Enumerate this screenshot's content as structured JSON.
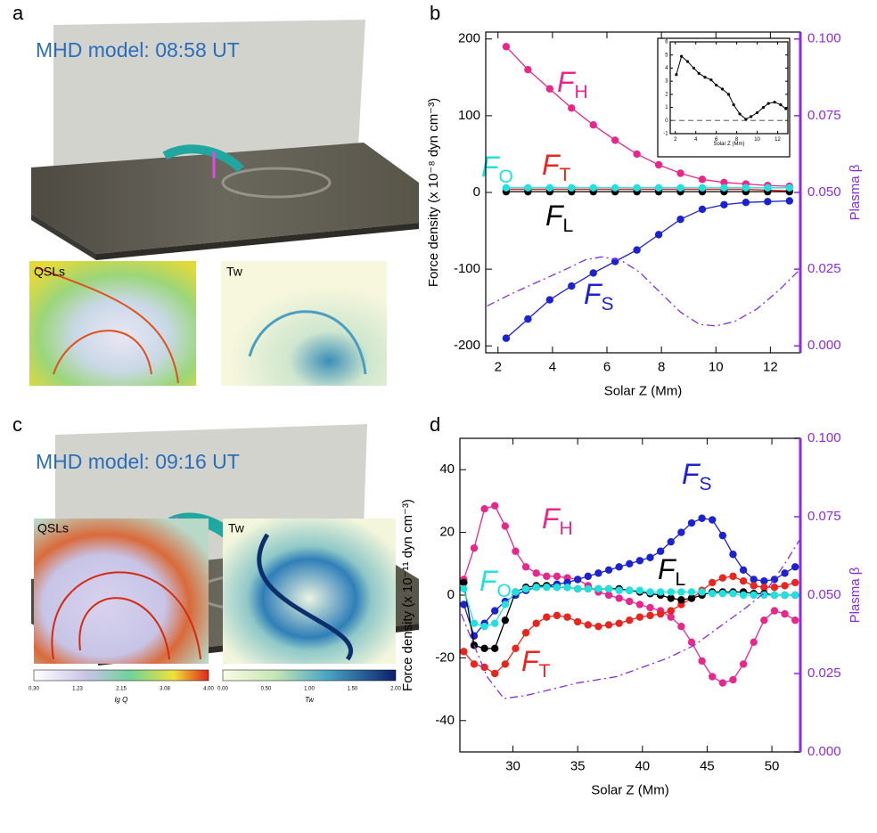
{
  "panels": [
    {
      "label": "a",
      "title": "MHD model: 08:58 UT",
      "qsl": "QSLs",
      "tw": "Tw"
    },
    {
      "label": "c",
      "title": "MHD model: 09:16 UT",
      "qsl": "QSLs",
      "tw": "Tw"
    }
  ],
  "colorbars": [
    {
      "ticks": [
        "0.30",
        "1.23",
        "2.15",
        "3.08",
        "4.00"
      ],
      "label": "lg Q"
    },
    {
      "ticks": [
        "0.00",
        "0.50",
        "1.00",
        "1.50",
        "2.00"
      ],
      "label": "Tw"
    }
  ],
  "chart_data": [
    {
      "type": "line",
      "panel_label": "b",
      "xlabel": "Solar Z (Mm)",
      "ylabel": "Force density (x 10⁻⁸ dyn cm⁻³)",
      "y2label": "Plasma β",
      "xlim": [
        1.55,
        13.1
      ],
      "ylim": [
        -209,
        209
      ],
      "y2lim": [
        -0.00225,
        0.10225
      ],
      "xticks": [
        2,
        4,
        6,
        8,
        10,
        12
      ],
      "yticks": [
        -200,
        -100,
        0,
        100,
        200
      ],
      "y2ticks": [
        {
          "value": 0,
          "label": "0.000"
        },
        0.025,
        {
          "value": 0.05,
          "label": "0.050"
        },
        0.075,
        {
          "value": 0.1,
          "label": "0.100"
        }
      ],
      "x": [
        2.3,
        3.1,
        3.9,
        4.7,
        5.5,
        6.3,
        7.1,
        7.9,
        8.7,
        9.5,
        10.3,
        11.1,
        11.9,
        12.7
      ],
      "series": [
        {
          "name": "FH",
          "color": "#e8278c",
          "marker": "o",
          "values": [
            190,
            160,
            135,
            110,
            88,
            68,
            50,
            36,
            25,
            17,
            13,
            11,
            9,
            8
          ]
        },
        {
          "name": "FS",
          "color": "#1c22d0",
          "marker": "o",
          "values": [
            -190,
            -165,
            -140,
            -122,
            -105,
            -90,
            -75,
            -55,
            -35,
            -22,
            -16,
            -13,
            -12,
            -11
          ]
        },
        {
          "name": "FT",
          "color": "#e8251e",
          "marker": "o",
          "values": [
            4,
            4,
            4,
            4,
            4,
            4,
            4,
            4,
            4,
            4,
            4,
            4,
            3,
            2
          ]
        },
        {
          "name": "FL",
          "color": "#000000",
          "marker": "o",
          "values": [
            1,
            1,
            1,
            1,
            1,
            1,
            1,
            1,
            1,
            1,
            1,
            1,
            1,
            1
          ]
        },
        {
          "name": "FO",
          "color": "#22e0e0",
          "marker": "o",
          "values": [
            6,
            6,
            6,
            6,
            6,
            6,
            6,
            6,
            6,
            6,
            6,
            6,
            6,
            6
          ]
        },
        {
          "axis": "y2",
          "color": "#8a2be2",
          "linestyle": "dashdot",
          "x": [
            1.6,
            2.5,
            3.5,
            4.5,
            5.2,
            5.8,
            6.5,
            7.2,
            8,
            8.7,
            9.4,
            10,
            10.7,
            11.5,
            12.3,
            13.1
          ],
          "values": [
            0.013,
            0.017,
            0.021,
            0.025,
            0.028,
            0.029,
            0.028,
            0.024,
            0.017,
            0.011,
            0.007,
            0.0065,
            0.008,
            0.012,
            0.018,
            0.025
          ]
        }
      ]
    },
    {
      "type": "line",
      "xlabel": "Solar Z (Mm)",
      "xlim": [
        1.5,
        13
      ],
      "ylim": [
        -1,
        6
      ],
      "xticks": [
        2,
        4,
        6,
        8,
        10,
        12
      ],
      "yticks": [
        -1,
        0,
        1,
        2,
        3,
        4,
        5,
        6
      ],
      "hline": 0,
      "x": [
        2.1,
        2.6,
        3.2,
        3.8,
        4.3,
        4.9,
        5.5,
        6.0,
        6.6,
        7.2,
        7.7,
        8.3,
        8.9,
        9.4,
        10.0,
        10.6,
        11.1,
        11.7,
        12.3,
        12.8
      ],
      "series": [
        {
          "color": "#000000",
          "marker": "o",
          "values": [
            3.5,
            4.9,
            4.5,
            4.0,
            3.6,
            3.3,
            3.1,
            2.7,
            2.4,
            2.0,
            1.2,
            0.5,
            0.1,
            0.3,
            0.6,
            1.0,
            1.3,
            1.4,
            1.2,
            0.9
          ]
        }
      ]
    },
    {
      "type": "line",
      "panel_label": "d",
      "xlabel": "Solar Z (Mm)",
      "ylabel": "Force density (x 10⁻¹¹ dyn cm⁻³)",
      "y2label": "Plasma β",
      "xlim": [
        25.9,
        52.2
      ],
      "ylim": [
        -50,
        50
      ],
      "y2lim": [
        0,
        0.1
      ],
      "xticks": [
        30,
        35,
        40,
        45,
        50
      ],
      "yticks": [
        -40,
        -20,
        0,
        20,
        40
      ],
      "y2ticks": [
        {
          "value": 0,
          "label": "0.000"
        },
        0.025,
        {
          "value": 0.05,
          "label": "0.050"
        },
        0.075,
        {
          "value": 0.1,
          "label": "0.100"
        }
      ],
      "x": [
        26.2,
        27,
        27.8,
        28.6,
        29.4,
        30.2,
        31,
        31.8,
        32.6,
        33.4,
        34.2,
        35,
        35.8,
        36.6,
        37.4,
        38.2,
        39,
        39.8,
        40.6,
        41.4,
        42.2,
        43,
        43.8,
        44.6,
        45.4,
        46.2,
        47,
        47.8,
        48.6,
        49.4,
        50.2,
        51,
        51.8
      ],
      "series": [
        {
          "name": "FH",
          "color": "#e8278c",
          "marker": "o",
          "values": [
            5,
            15,
            27.5,
            28.5,
            22,
            14,
            9,
            7,
            6,
            6,
            5.5,
            5,
            3,
            1,
            0,
            -1,
            -2,
            -3,
            -4,
            -5,
            -7,
            -10,
            -15,
            -21,
            -26,
            -28,
            -27,
            -22,
            -15,
            -8,
            -5,
            -6,
            -8
          ]
        },
        {
          "name": "FS",
          "color": "#1c22d0",
          "marker": "o",
          "values": [
            -3,
            -13,
            -9,
            -5,
            -2,
            0,
            1.5,
            2.5,
            3,
            3.5,
            4,
            5,
            6,
            7,
            8,
            9,
            10,
            11,
            12,
            14,
            17,
            20,
            23,
            24.5,
            24,
            19,
            13,
            8,
            5,
            4.5,
            5,
            7,
            9
          ]
        },
        {
          "name": "FT",
          "color": "#e8251e",
          "marker": "o",
          "values": [
            -18,
            -22,
            -23,
            -25,
            -22,
            -17,
            -12,
            -9,
            -7,
            -6.5,
            -7,
            -8.5,
            -9.5,
            -10,
            -9.5,
            -9,
            -8,
            -7,
            -6.5,
            -6,
            -5,
            -3,
            -1,
            1.5,
            4,
            5.5,
            6,
            4.5,
            3,
            2.5,
            2.5,
            3,
            4
          ]
        },
        {
          "name": "FL",
          "color": "#000000",
          "marker": "o",
          "values": [
            4,
            -16,
            -17,
            -17,
            -8,
            1,
            2.5,
            3,
            3,
            2.5,
            2.5,
            2,
            2,
            2,
            2,
            2,
            1.5,
            1,
            0.5,
            0,
            -1,
            -1.5,
            -1,
            0,
            1,
            1,
            1,
            1,
            0.5,
            0.5,
            0,
            0,
            0
          ]
        },
        {
          "name": "FO",
          "color": "#22e0e0",
          "marker": "o",
          "values": [
            2,
            -9,
            -10,
            -9,
            -3,
            1,
            2,
            2.5,
            2.5,
            2.5,
            2.5,
            2,
            2,
            2,
            2,
            1.5,
            1.5,
            1.5,
            1,
            1,
            1,
            1,
            1,
            1,
            0.5,
            0.5,
            0.5,
            0,
            0,
            0,
            0,
            0,
            0
          ]
        },
        {
          "axis": "y2",
          "color": "#8a2be2",
          "linestyle": "dashdot",
          "x": [
            26,
            27,
            28,
            29.3,
            31,
            33,
            35,
            38,
            40,
            42,
            44,
            46,
            48,
            49.5,
            51,
            52.2
          ],
          "values": [
            0.044,
            0.034,
            0.024,
            0.017,
            0.018,
            0.02,
            0.022,
            0.024,
            0.027,
            0.03,
            0.034,
            0.04,
            0.046,
            0.051,
            0.06,
            0.068
          ]
        }
      ]
    }
  ]
}
